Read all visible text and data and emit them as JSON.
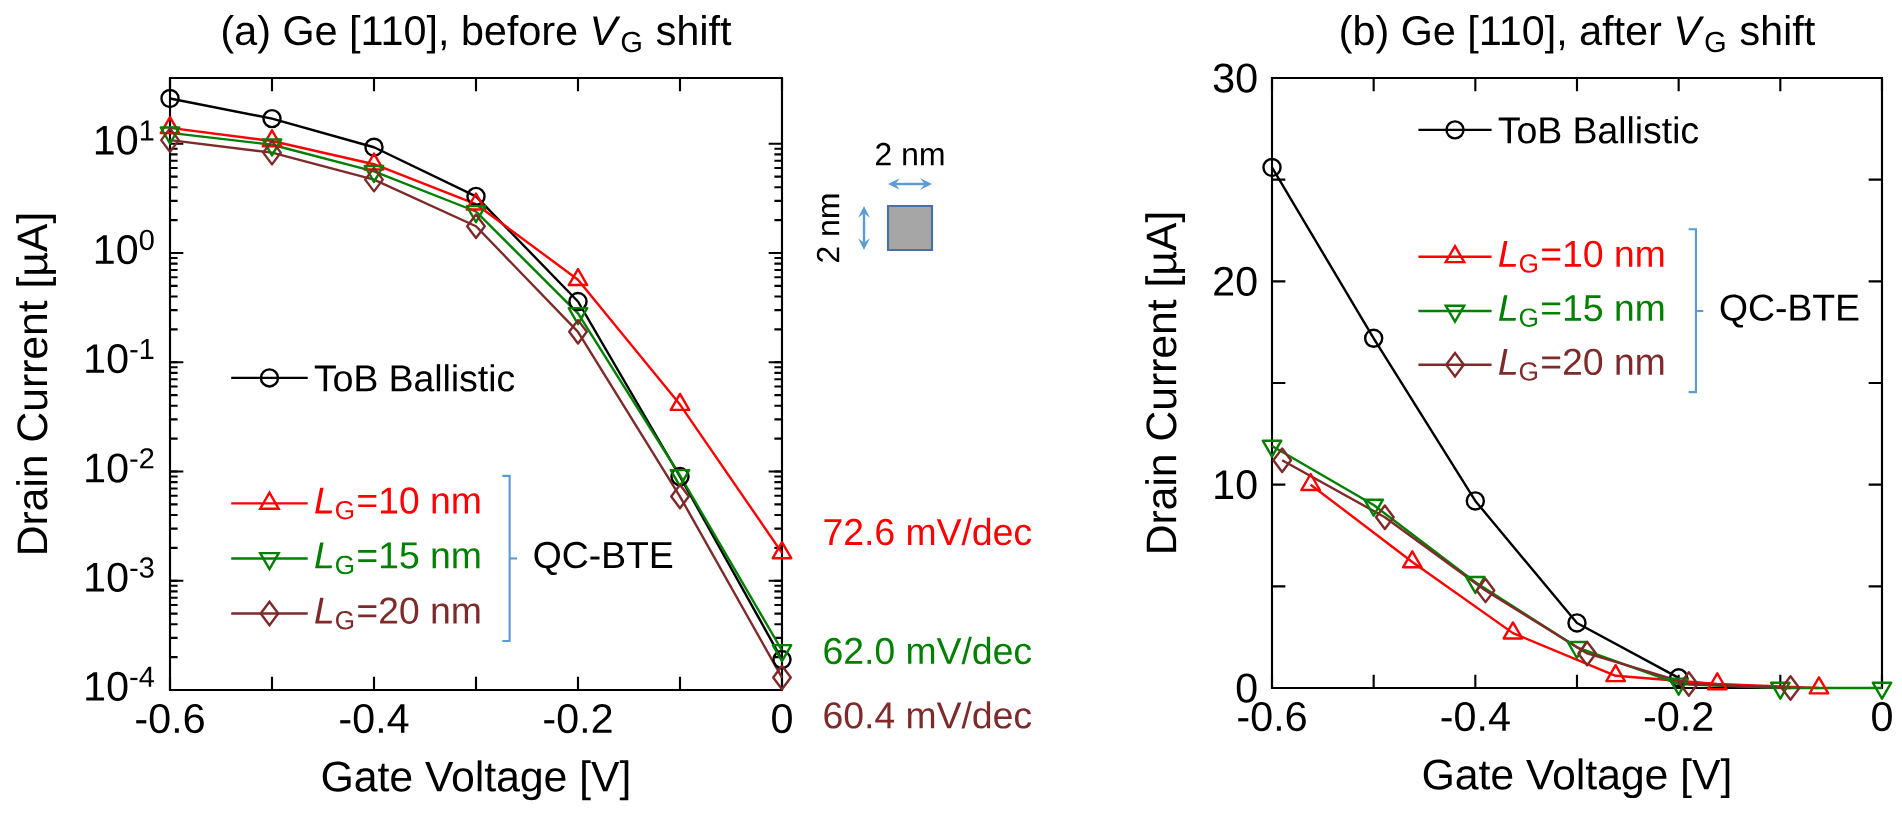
{
  "chart_data": [
    {
      "type": "line",
      "title": "(a) Ge [110], before *V*$_{G}$ shift",
      "xlabel": "Gate Voltage [V]",
      "ylabel": "Drain Current [µA]",
      "log": "y",
      "xlim": [
        -0.6,
        0
      ],
      "ylim": [
        0.0001,
        40
      ],
      "xticks": [
        -0.6,
        {
          "value": -0.5,
          "label": null
        },
        -0.4,
        {
          "value": -0.3,
          "label": null
        },
        -0.2,
        {
          "value": -0.1,
          "label": null
        },
        0
      ],
      "yticks": [
        {
          "value": 0.0001,
          "label": "10$^{-4}$"
        },
        {
          "value": 0.001,
          "label": "10$^{-3}$"
        },
        {
          "value": 0.01,
          "label": "10$^{-2}$"
        },
        {
          "value": 0.1,
          "label": "10$^{-1}$"
        },
        {
          "value": 1,
          "label": "10$^{0}$"
        },
        {
          "value": 10,
          "label": "10$^{1}$"
        }
      ],
      "legend": "left",
      "grid": false,
      "line_style": "solid",
      "x": [
        -0.6,
        -0.5,
        -0.4,
        -0.3,
        -0.2,
        -0.1,
        0
      ],
      "series": [
        {
          "name": "ToB Ballistic",
          "color": "#000000",
          "marker": "circle",
          "values": [
            26,
            17,
            9.3,
            3.3,
            0.36,
            0.009,
            0.00019
          ]
        },
        {
          "name": "*L*$_{G}$=10 nm",
          "color": "#ff0000",
          "marker": "triangle",
          "values": [
            14,
            10.6,
            6.5,
            2.8,
            0.57,
            0.041,
            0.0018
          ]
        },
        {
          "name": "*L*$_{G}$=15 nm",
          "color": "#008000",
          "marker": "triangle-down",
          "values": [
            12.6,
            9.8,
            5.6,
            2.4,
            0.28,
            0.0092,
            0.00023
          ]
        },
        {
          "name": "*L*$_{G}$=20 nm",
          "color": "#7f2a2a",
          "marker": "diamond",
          "values": [
            10.8,
            8.3,
            4.7,
            1.76,
            0.19,
            0.0059,
            0.00013
          ]
        }
      ],
      "annotations": [
        "QC-BTE",
        "72.6 mV/dec",
        "62.0 mV/dec",
        "60.4 mV/dec",
        "2 nm",
        "2 nm"
      ]
    },
    {
      "type": "line",
      "title": "(b) Ge [110], after *V*$_{G}$ shift",
      "xlabel": "Gate Voltage [V]",
      "ylabel": "Drain Current [µA]",
      "xlim": [
        -0.6,
        0
      ],
      "ylim": [
        0,
        30
      ],
      "xticks": [
        -0.6,
        {
          "value": -0.5,
          "label": null
        },
        -0.4,
        {
          "value": -0.3,
          "label": null
        },
        -0.2,
        {
          "value": -0.1,
          "label": null
        },
        0
      ],
      "yticks": [
        0,
        {
          "value": 5,
          "label": null
        },
        10,
        {
          "value": 15,
          "label": null
        },
        20,
        {
          "value": 25,
          "label": null
        },
        30
      ],
      "legend": "top",
      "grid": false,
      "line_style": "solid",
      "series": [
        {
          "name": "ToB Ballistic",
          "color": "#000000",
          "marker": "circle",
          "x": [
            -0.6,
            -0.5,
            -0.4,
            -0.3,
            -0.2
          ],
          "values": [
            25.6,
            17.2,
            9.2,
            3.2,
            0.5
          ]
        },
        {
          "name": "*L*$_{G}$=10 nm",
          "color": "#ff0000",
          "marker": "triangle",
          "x": [
            -0.562,
            -0.462,
            -0.363,
            -0.262,
            -0.162,
            -0.062
          ],
          "values": [
            10.0,
            6.2,
            2.7,
            0.6,
            0.2,
            0
          ]
        },
        {
          "name": "*L*$_{G}$=15 nm",
          "color": "#008000",
          "marker": "triangle-down",
          "x": [
            -0.6,
            -0.5,
            -0.4,
            -0.3,
            -0.2,
            -0.1,
            0
          ],
          "values": [
            11.9,
            9,
            5.2,
            2.0,
            0.2,
            0,
            0
          ]
        },
        {
          "name": "*L*$_{G}$=20 nm",
          "color": "#7f2a2a",
          "marker": "diamond",
          "x": [
            -0.59,
            -0.489,
            -0.39,
            -0.29,
            -0.19,
            -0.09
          ],
          "values": [
            11.2,
            8.4,
            4.8,
            1.7,
            0.2,
            0
          ]
        }
      ],
      "annotations": [
        "QC-BTE"
      ]
    }
  ]
}
